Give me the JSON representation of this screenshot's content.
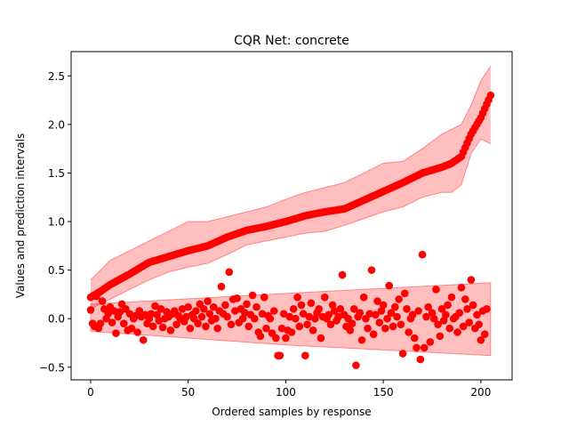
{
  "chart_data": {
    "type": "scatter",
    "title": "CQR Net: concrete",
    "xlabel": "Ordered samples by response",
    "ylabel": "Values and prediction intervals",
    "xlim": [
      -10,
      216
    ],
    "ylim": [
      -0.63,
      2.75
    ],
    "xticks": [
      0,
      50,
      100,
      150,
      200
    ],
    "yticks": [
      -0.5,
      0.0,
      0.5,
      1.0,
      1.5,
      2.0,
      2.5
    ],
    "xtick_labels": [
      "0",
      "50",
      "100",
      "150",
      "200"
    ],
    "ytick_labels": [
      "−0.5",
      "0.0",
      "0.5",
      "1.0",
      "1.5",
      "2.0",
      "2.5"
    ],
    "grid": false,
    "legend": "none",
    "n_samples": 206,
    "colors": {
      "points": "#ff0000",
      "band": "#ff0000",
      "band_alpha": 0.25
    },
    "upper_series": {
      "x_keypoints": [
        0,
        5,
        10,
        20,
        30,
        40,
        50,
        60,
        70,
        80,
        90,
        100,
        110,
        120,
        130,
        140,
        150,
        160,
        170,
        180,
        185,
        190,
        195,
        200,
        205
      ],
      "values": [
        0.22,
        0.28,
        0.35,
        0.46,
        0.58,
        0.64,
        0.7,
        0.75,
        0.84,
        0.91,
        0.95,
        1.0,
        1.06,
        1.1,
        1.13,
        1.22,
        1.31,
        1.4,
        1.5,
        1.56,
        1.6,
        1.67,
        1.9,
        2.07,
        2.3
      ],
      "band_lower": [
        0.1,
        0.15,
        0.2,
        0.3,
        0.4,
        0.48,
        0.53,
        0.57,
        0.66,
        0.76,
        0.8,
        0.84,
        0.88,
        0.9,
        0.96,
        1.03,
        1.1,
        1.15,
        1.25,
        1.3,
        1.3,
        1.38,
        1.7,
        1.85,
        1.8
      ],
      "band_upper": [
        0.4,
        0.5,
        0.6,
        0.7,
        0.8,
        0.9,
        1.0,
        1.0,
        1.05,
        1.1,
        1.15,
        1.23,
        1.3,
        1.35,
        1.4,
        1.5,
        1.6,
        1.62,
        1.75,
        1.9,
        1.95,
        2.0,
        2.2,
        2.45,
        2.6
      ]
    },
    "lower_series": {
      "band_lower_x": [
        0,
        100,
        205
      ],
      "band_lower": [
        -0.13,
        -0.27,
        -0.38
      ],
      "band_upper_x": [
        0,
        100,
        205
      ],
      "band_upper": [
        0.15,
        0.26,
        0.37
      ],
      "values": [
        0.09,
        -0.05,
        -0.08,
        0.23,
        -0.1,
        -0.05,
        0.18,
        0.1,
        0.0,
        0.05,
        0.12,
        -0.04,
        0.08,
        -0.15,
        0.02,
        0.07,
        0.15,
        -0.05,
        0.1,
        -0.12,
        0.05,
        -0.1,
        0.0,
        0.03,
        -0.14,
        0.08,
        0.02,
        -0.22,
        0.04,
        -0.05,
        0.0,
        0.05,
        -0.08,
        0.13,
        0.04,
        -0.02,
        0.1,
        -0.09,
        0.0,
        0.07,
        0.02,
        -0.12,
        0.05,
        0.08,
        -0.06,
        0.03,
        0.0,
        0.1,
        -0.03,
        0.02,
        0.12,
        -0.1,
        0.04,
        0.0,
        0.08,
        -0.05,
        0.15,
        0.02,
        0.1,
        -0.08,
        0.18,
        0.05,
        -0.02,
        0.12,
        0.0,
        -0.1,
        0.08,
        0.33,
        0.05,
        0.14,
        0.02,
        0.48,
        -0.06,
        0.2,
        0.08,
        0.21,
        -0.04,
        0.1,
        0.0,
        0.06,
        0.15,
        -0.08,
        0.04,
        0.24,
        0.0,
        0.12,
        -0.14,
        -0.18,
        0.05,
        0.22,
        -0.1,
        0.03,
        0.0,
        -0.15,
        0.08,
        -0.2,
        -0.38,
        -0.38,
        -0.1,
        0.05,
        -0.2,
        -0.12,
        0.02,
        -0.14,
        0.1,
        0.0,
        0.22,
        -0.08,
        0.14,
        0.05,
        -0.38,
        -0.06,
        0.02,
        0.16,
        -0.12,
        0.0,
        0.06,
        0.1,
        -0.2,
        0.02,
        0.22,
        0.0,
        0.04,
        -0.06,
        0.14,
        0.08,
        -0.02,
        0.02,
        0.1,
        0.45,
        0.04,
        -0.08,
        0.0,
        -0.12,
        -0.05,
        0.1,
        -0.48,
        0.02,
        0.06,
        -0.22,
        0.22,
        0.0,
        -0.1,
        0.05,
        0.5,
        -0.16,
        0.04,
        0.18,
        -0.04,
        0.08,
        0.14,
        -0.1,
        0.0,
        0.34,
        0.06,
        -0.08,
        0.12,
        0.02,
        0.2,
        -0.06,
        -0.36,
        0.26,
        0.1,
        -0.14,
        0.0,
        0.04,
        -0.2,
        -0.3,
        0.08,
        -0.42,
        0.66,
        -0.3,
        0.02,
        0.12,
        -0.24,
        0.06,
        0.0,
        0.3,
        -0.06,
        -0.18,
        0.1,
        -0.02,
        0.04,
        0.14,
        -0.1,
        0.22,
        0.0,
        0.02,
        -0.14,
        0.06,
        0.32,
        -0.08,
        0.2,
        0.1,
        -0.04,
        0.4,
        0.14,
        -0.1,
        0.04,
        -0.06,
        -0.22,
        0.08,
        -0.16,
        0.1
      ]
    }
  }
}
